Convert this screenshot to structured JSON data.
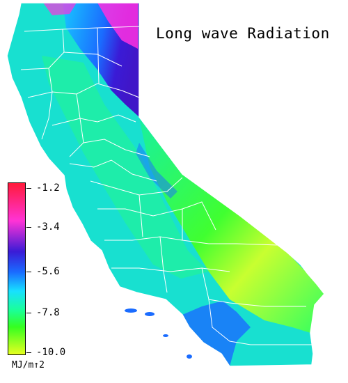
{
  "title": "Long wave Radiation",
  "colors": {
    "background": "#ffffff",
    "boundary": "#ffffff",
    "scale_stops": [
      "#ff1a3a",
      "#ff33d6",
      "#3a1bd6",
      "#1a6cff",
      "#18e0ff",
      "#1aff9a",
      "#35ff20",
      "#e6ff20"
    ]
  },
  "legend": {
    "ticks": [
      "-1.2",
      "-3.4",
      "-5.6",
      "-7.8",
      "-10.0"
    ],
    "unit": "MJ/m↑2"
  }
}
